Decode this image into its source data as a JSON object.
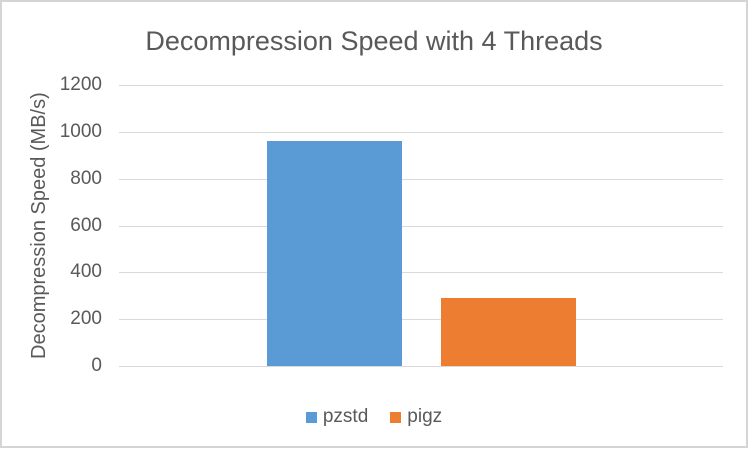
{
  "chart_data": {
    "type": "bar",
    "title": "Decompression Speed with 4 Threads",
    "xlabel": "",
    "ylabel": "Decompression Speed (MB/s)",
    "categories": [
      ""
    ],
    "series": [
      {
        "name": "pzstd",
        "values": [
          960
        ],
        "color": "#5B9BD5"
      },
      {
        "name": "pigz",
        "values": [
          290
        ],
        "color": "#ED7D31"
      }
    ],
    "ylim": [
      0,
      1200
    ],
    "yticks": [
      0,
      200,
      400,
      600,
      800,
      1000,
      1200
    ],
    "grid": true,
    "legend_position": "bottom",
    "text_color": "#595959",
    "gridline_color": "#D9D9D9"
  }
}
